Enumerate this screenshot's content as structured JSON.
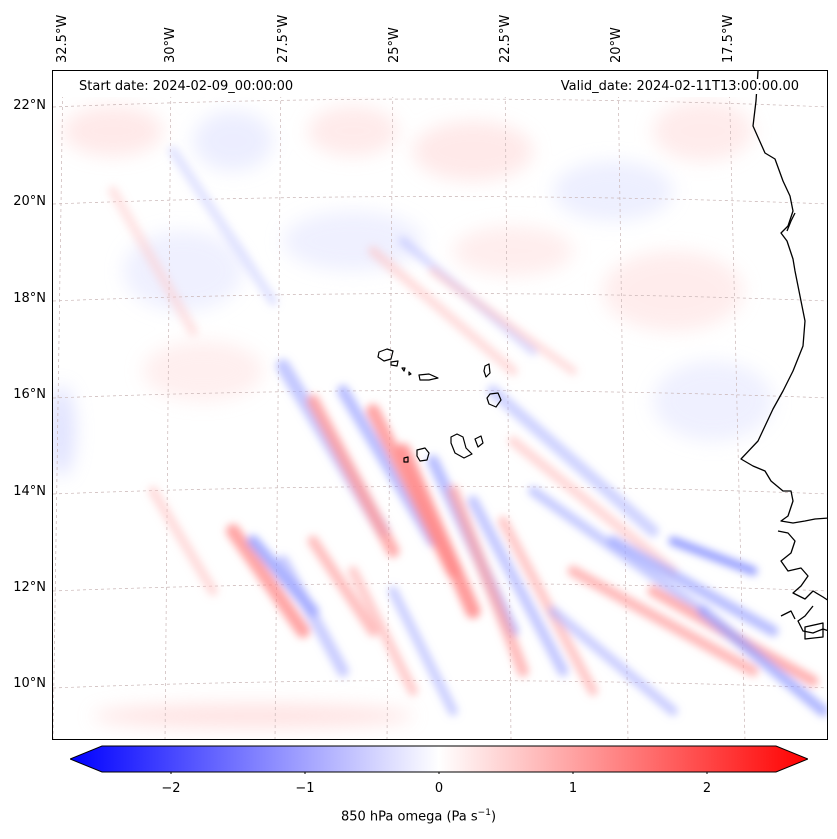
{
  "header": {
    "start_date": "Start date: 2024-02-09_00:00:00",
    "valid_date": "Valid_date: 2024-02-11T13:00:00.00"
  },
  "axes": {
    "lon_labels": [
      "32.5°W",
      "30°W",
      "27.5°W",
      "25°W",
      "22.5°W",
      "20°W",
      "17.5°W"
    ],
    "lat_labels": [
      "22°N",
      "20°N",
      "18°N",
      "16°N",
      "14°N",
      "12°N",
      "10°N"
    ]
  },
  "colorbar": {
    "ticks": [
      "−2",
      "−1",
      "0",
      "1",
      "2"
    ],
    "label_prefix": "850 hPa omega (Pa s",
    "label_exp": "−1",
    "label_suffix": ")",
    "min": -2.5,
    "max": 2.5,
    "cmap": "bwr",
    "extend": "both"
  },
  "colors": {
    "negative": "#0000ff",
    "zero": "#ffffff",
    "positive": "#ff0000",
    "coastline": "#000000",
    "gridline": "#c8b4b4"
  }
}
